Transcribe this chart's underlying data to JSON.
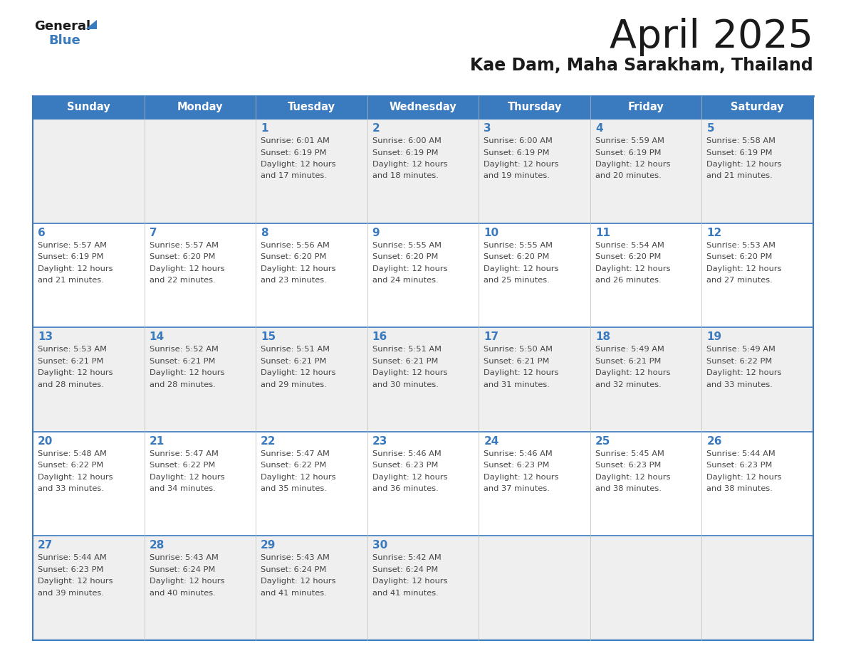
{
  "title": "April 2025",
  "subtitle": "Kae Dam, Maha Sarakham, Thailand",
  "days_of_week": [
    "Sunday",
    "Monday",
    "Tuesday",
    "Wednesday",
    "Thursday",
    "Friday",
    "Saturday"
  ],
  "header_bg": "#3a7abf",
  "header_text": "#ffffff",
  "cell_bg_odd": "#efefef",
  "cell_bg_even": "#ffffff",
  "title_color": "#1a1a1a",
  "subtitle_color": "#1a1a1a",
  "day_number_color": "#3a7abf",
  "cell_text_color": "#444444",
  "border_color": "#3a7abf",
  "logo_general_color": "#1a1a1a",
  "logo_blue_color": "#3a7abf",
  "logo_triangle_color": "#3a7abf",
  "weeks": [
    [
      {
        "day": null,
        "sunrise": null,
        "sunset": null,
        "daylight": null
      },
      {
        "day": null,
        "sunrise": null,
        "sunset": null,
        "daylight": null
      },
      {
        "day": 1,
        "sunrise": "Sunrise: 6:01 AM",
        "sunset": "Sunset: 6:19 PM",
        "daylight": "Daylight: 12 hours\nand 17 minutes."
      },
      {
        "day": 2,
        "sunrise": "Sunrise: 6:00 AM",
        "sunset": "Sunset: 6:19 PM",
        "daylight": "Daylight: 12 hours\nand 18 minutes."
      },
      {
        "day": 3,
        "sunrise": "Sunrise: 6:00 AM",
        "sunset": "Sunset: 6:19 PM",
        "daylight": "Daylight: 12 hours\nand 19 minutes."
      },
      {
        "day": 4,
        "sunrise": "Sunrise: 5:59 AM",
        "sunset": "Sunset: 6:19 PM",
        "daylight": "Daylight: 12 hours\nand 20 minutes."
      },
      {
        "day": 5,
        "sunrise": "Sunrise: 5:58 AM",
        "sunset": "Sunset: 6:19 PM",
        "daylight": "Daylight: 12 hours\nand 21 minutes."
      }
    ],
    [
      {
        "day": 6,
        "sunrise": "Sunrise: 5:57 AM",
        "sunset": "Sunset: 6:19 PM",
        "daylight": "Daylight: 12 hours\nand 21 minutes."
      },
      {
        "day": 7,
        "sunrise": "Sunrise: 5:57 AM",
        "sunset": "Sunset: 6:20 PM",
        "daylight": "Daylight: 12 hours\nand 22 minutes."
      },
      {
        "day": 8,
        "sunrise": "Sunrise: 5:56 AM",
        "sunset": "Sunset: 6:20 PM",
        "daylight": "Daylight: 12 hours\nand 23 minutes."
      },
      {
        "day": 9,
        "sunrise": "Sunrise: 5:55 AM",
        "sunset": "Sunset: 6:20 PM",
        "daylight": "Daylight: 12 hours\nand 24 minutes."
      },
      {
        "day": 10,
        "sunrise": "Sunrise: 5:55 AM",
        "sunset": "Sunset: 6:20 PM",
        "daylight": "Daylight: 12 hours\nand 25 minutes."
      },
      {
        "day": 11,
        "sunrise": "Sunrise: 5:54 AM",
        "sunset": "Sunset: 6:20 PM",
        "daylight": "Daylight: 12 hours\nand 26 minutes."
      },
      {
        "day": 12,
        "sunrise": "Sunrise: 5:53 AM",
        "sunset": "Sunset: 6:20 PM",
        "daylight": "Daylight: 12 hours\nand 27 minutes."
      }
    ],
    [
      {
        "day": 13,
        "sunrise": "Sunrise: 5:53 AM",
        "sunset": "Sunset: 6:21 PM",
        "daylight": "Daylight: 12 hours\nand 28 minutes."
      },
      {
        "day": 14,
        "sunrise": "Sunrise: 5:52 AM",
        "sunset": "Sunset: 6:21 PM",
        "daylight": "Daylight: 12 hours\nand 28 minutes."
      },
      {
        "day": 15,
        "sunrise": "Sunrise: 5:51 AM",
        "sunset": "Sunset: 6:21 PM",
        "daylight": "Daylight: 12 hours\nand 29 minutes."
      },
      {
        "day": 16,
        "sunrise": "Sunrise: 5:51 AM",
        "sunset": "Sunset: 6:21 PM",
        "daylight": "Daylight: 12 hours\nand 30 minutes."
      },
      {
        "day": 17,
        "sunrise": "Sunrise: 5:50 AM",
        "sunset": "Sunset: 6:21 PM",
        "daylight": "Daylight: 12 hours\nand 31 minutes."
      },
      {
        "day": 18,
        "sunrise": "Sunrise: 5:49 AM",
        "sunset": "Sunset: 6:21 PM",
        "daylight": "Daylight: 12 hours\nand 32 minutes."
      },
      {
        "day": 19,
        "sunrise": "Sunrise: 5:49 AM",
        "sunset": "Sunset: 6:22 PM",
        "daylight": "Daylight: 12 hours\nand 33 minutes."
      }
    ],
    [
      {
        "day": 20,
        "sunrise": "Sunrise: 5:48 AM",
        "sunset": "Sunset: 6:22 PM",
        "daylight": "Daylight: 12 hours\nand 33 minutes."
      },
      {
        "day": 21,
        "sunrise": "Sunrise: 5:47 AM",
        "sunset": "Sunset: 6:22 PM",
        "daylight": "Daylight: 12 hours\nand 34 minutes."
      },
      {
        "day": 22,
        "sunrise": "Sunrise: 5:47 AM",
        "sunset": "Sunset: 6:22 PM",
        "daylight": "Daylight: 12 hours\nand 35 minutes."
      },
      {
        "day": 23,
        "sunrise": "Sunrise: 5:46 AM",
        "sunset": "Sunset: 6:23 PM",
        "daylight": "Daylight: 12 hours\nand 36 minutes."
      },
      {
        "day": 24,
        "sunrise": "Sunrise: 5:46 AM",
        "sunset": "Sunset: 6:23 PM",
        "daylight": "Daylight: 12 hours\nand 37 minutes."
      },
      {
        "day": 25,
        "sunrise": "Sunrise: 5:45 AM",
        "sunset": "Sunset: 6:23 PM",
        "daylight": "Daylight: 12 hours\nand 38 minutes."
      },
      {
        "day": 26,
        "sunrise": "Sunrise: 5:44 AM",
        "sunset": "Sunset: 6:23 PM",
        "daylight": "Daylight: 12 hours\nand 38 minutes."
      }
    ],
    [
      {
        "day": 27,
        "sunrise": "Sunrise: 5:44 AM",
        "sunset": "Sunset: 6:23 PM",
        "daylight": "Daylight: 12 hours\nand 39 minutes."
      },
      {
        "day": 28,
        "sunrise": "Sunrise: 5:43 AM",
        "sunset": "Sunset: 6:24 PM",
        "daylight": "Daylight: 12 hours\nand 40 minutes."
      },
      {
        "day": 29,
        "sunrise": "Sunrise: 5:43 AM",
        "sunset": "Sunset: 6:24 PM",
        "daylight": "Daylight: 12 hours\nand 41 minutes."
      },
      {
        "day": 30,
        "sunrise": "Sunrise: 5:42 AM",
        "sunset": "Sunset: 6:24 PM",
        "daylight": "Daylight: 12 hours\nand 41 minutes."
      },
      {
        "day": null,
        "sunrise": null,
        "sunset": null,
        "daylight": null
      },
      {
        "day": null,
        "sunrise": null,
        "sunset": null,
        "daylight": null
      },
      {
        "day": null,
        "sunrise": null,
        "sunset": null,
        "daylight": null
      }
    ]
  ]
}
